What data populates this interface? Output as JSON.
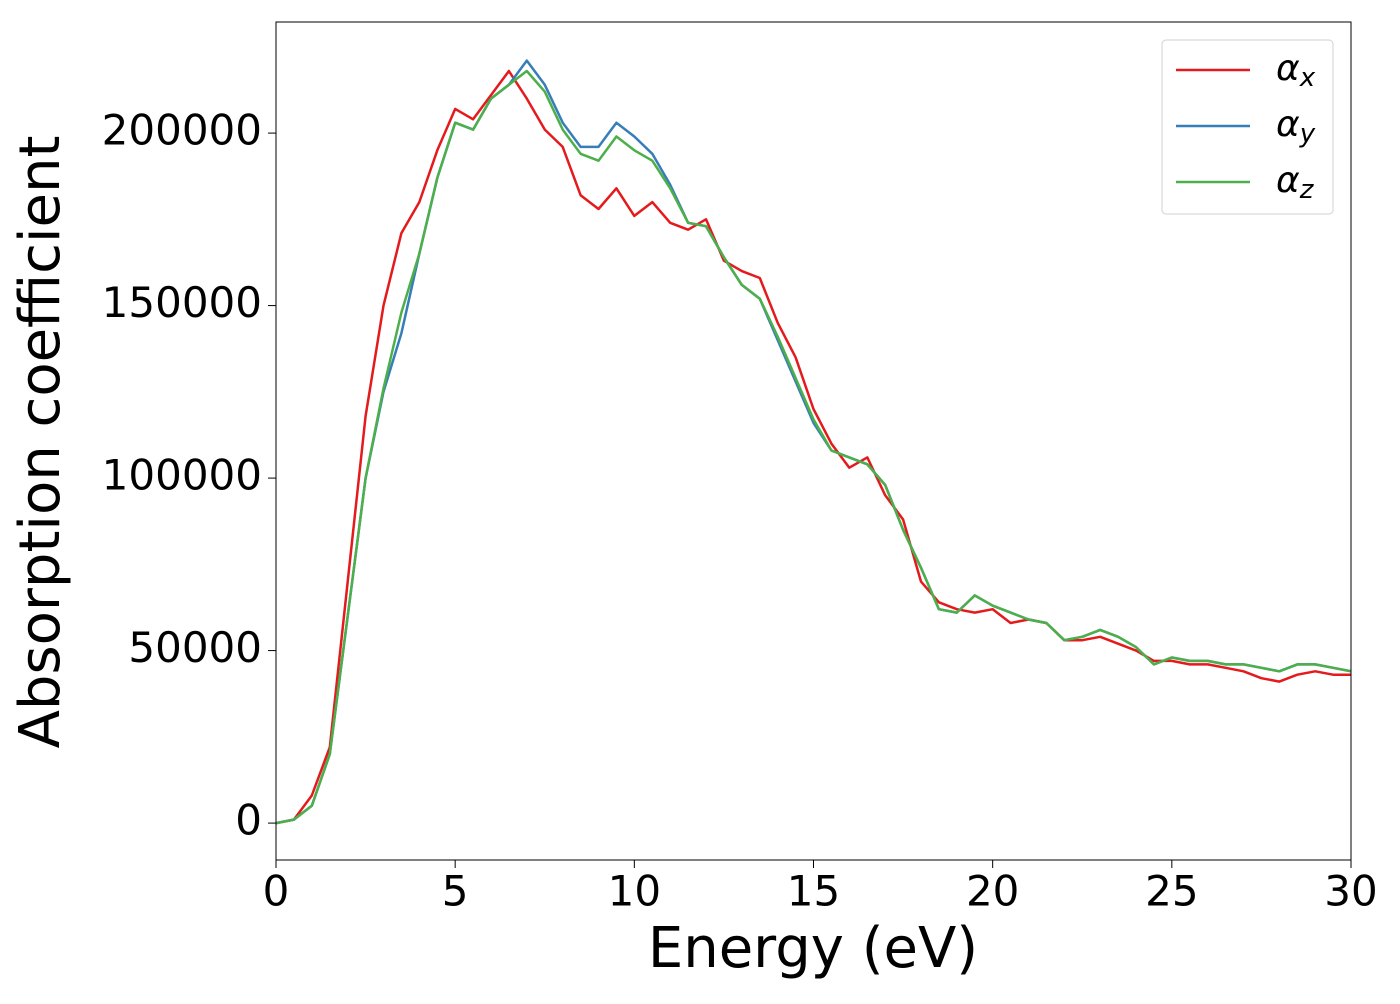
{
  "chart_data": {
    "type": "line",
    "xlabel": "Energy (eV)",
    "ylabel": "Absorption coefficient",
    "x": [
      0,
      0.5,
      1,
      1.5,
      2,
      2.5,
      3,
      3.5,
      4,
      4.5,
      5,
      5.5,
      6,
      6.5,
      7,
      7.5,
      8,
      8.5,
      9,
      9.5,
      10,
      10.5,
      11,
      11.5,
      12,
      12.5,
      13,
      13.5,
      14,
      14.5,
      15,
      15.5,
      16,
      16.5,
      17,
      17.5,
      18,
      18.5,
      19,
      19.5,
      20,
      20.5,
      21,
      21.5,
      22,
      22.5,
      23,
      23.5,
      24,
      24.5,
      25,
      25.5,
      26,
      26.5,
      27,
      27.5,
      28,
      28.5,
      29,
      29.5,
      30
    ],
    "series": [
      {
        "name": "αx",
        "color": "#e41a1c",
        "values": [
          0,
          1000,
          8000,
          22000,
          70000,
          118000,
          150000,
          171000,
          180000,
          195000,
          207000,
          204000,
          211000,
          218000,
          210000,
          201000,
          196000,
          182000,
          178000,
          184000,
          176000,
          180000,
          174000,
          172000,
          175000,
          163000,
          160000,
          158000,
          145000,
          135000,
          120000,
          110000,
          103000,
          106000,
          95000,
          88000,
          70000,
          64000,
          62000,
          61000,
          62000,
          58000,
          59000,
          58000,
          53000,
          53000,
          54000,
          52000,
          50000,
          47000,
          47000,
          46000,
          46000,
          45000,
          44000,
          42000,
          41000,
          43000,
          44000,
          43000,
          43000
        ]
      },
      {
        "name": "αy",
        "color": "#377eb8",
        "values": [
          0,
          1000,
          5000,
          20000,
          60000,
          100000,
          125000,
          142000,
          165000,
          187000,
          203000,
          201000,
          210000,
          214000,
          221000,
          214000,
          203000,
          196000,
          196000,
          203000,
          199000,
          194000,
          185000,
          174000,
          173000,
          164000,
          156000,
          152000,
          140000,
          128000,
          116000,
          108000,
          106000,
          104000,
          98000,
          85000,
          74000,
          62000,
          61000,
          66000,
          63000,
          61000,
          59000,
          58000,
          53000,
          54000,
          56000,
          54000,
          51000,
          46000,
          48000,
          47000,
          47000,
          46000,
          46000,
          45000,
          44000,
          46000,
          46000,
          45000,
          44000
        ]
      },
      {
        "name": "αz",
        "color": "#4daf4a",
        "values": [
          0,
          1000,
          5000,
          20000,
          60000,
          100000,
          126000,
          148000,
          165000,
          187000,
          203000,
          201000,
          210000,
          214000,
          218000,
          212000,
          201000,
          194000,
          192000,
          199000,
          195000,
          192000,
          184000,
          174000,
          173000,
          164000,
          156000,
          152000,
          141000,
          129000,
          117000,
          108000,
          106000,
          104000,
          98000,
          85000,
          74000,
          62000,
          61000,
          66000,
          63000,
          61000,
          59000,
          58000,
          53000,
          54000,
          56000,
          54000,
          51000,
          46000,
          48000,
          47000,
          47000,
          46000,
          46000,
          45000,
          44000,
          46000,
          46000,
          45000,
          44000
        ]
      }
    ],
    "xlim": [
      0,
      30
    ],
    "xticks": [
      0,
      5,
      10,
      15,
      20,
      25,
      30
    ],
    "ylim": [
      -10700,
      232200
    ],
    "yticks": [
      0,
      50000,
      100000,
      150000,
      200000
    ],
    "legend": "upper right",
    "grid": false
  }
}
